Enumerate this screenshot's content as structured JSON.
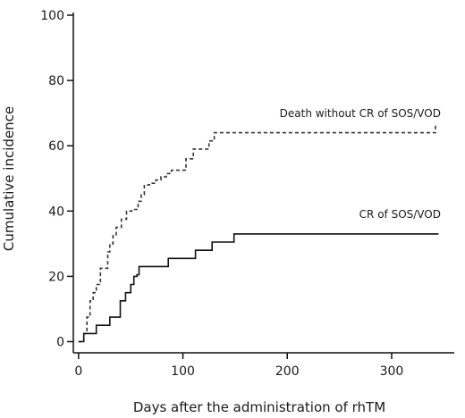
{
  "chart_data": {
    "type": "line",
    "title": "",
    "xlabel": "Days after the administration of rhTM",
    "ylabel": "Cumulative incidence",
    "xlim": [
      -5,
      360
    ],
    "ylim": [
      0,
      100
    ],
    "x_ticks": [
      0,
      100,
      200,
      300
    ],
    "y_ticks": [
      0,
      20,
      40,
      60,
      80,
      100
    ],
    "grid": false,
    "legend": "inline labels at top-right of each curve",
    "step": true,
    "series": [
      {
        "name": "Death without CR of SOS/VOD",
        "line_style": "dashed",
        "color": "#333333",
        "x": [
          0,
          5,
          8,
          11,
          14,
          17,
          21,
          28,
          30,
          33,
          36,
          41,
          46,
          51,
          57,
          60,
          63,
          68,
          74,
          79,
          84,
          89,
          103,
          110,
          121,
          125,
          130,
          342
        ],
        "y": [
          0,
          2.5,
          7.5,
          12.5,
          15,
          17.5,
          22.5,
          27.5,
          30,
          32.5,
          35,
          37.5,
          40,
          40.5,
          43,
          45,
          48,
          48.5,
          49.5,
          50.5,
          51.5,
          52.5,
          56,
          59,
          59,
          61.5,
          64,
          66.5
        ]
      },
      {
        "name": "CR of SOS/VOD",
        "line_style": "solid",
        "color": "#111111",
        "x": [
          0,
          5,
          17,
          30,
          40,
          45,
          50,
          53,
          56,
          58,
          63,
          86,
          96,
          112,
          128,
          149,
          345
        ],
        "y": [
          0,
          2.5,
          5,
          7.5,
          12.5,
          15,
          17.5,
          20,
          20.5,
          23,
          23,
          25.5,
          25.5,
          28,
          30.5,
          33,
          33
        ]
      }
    ]
  }
}
